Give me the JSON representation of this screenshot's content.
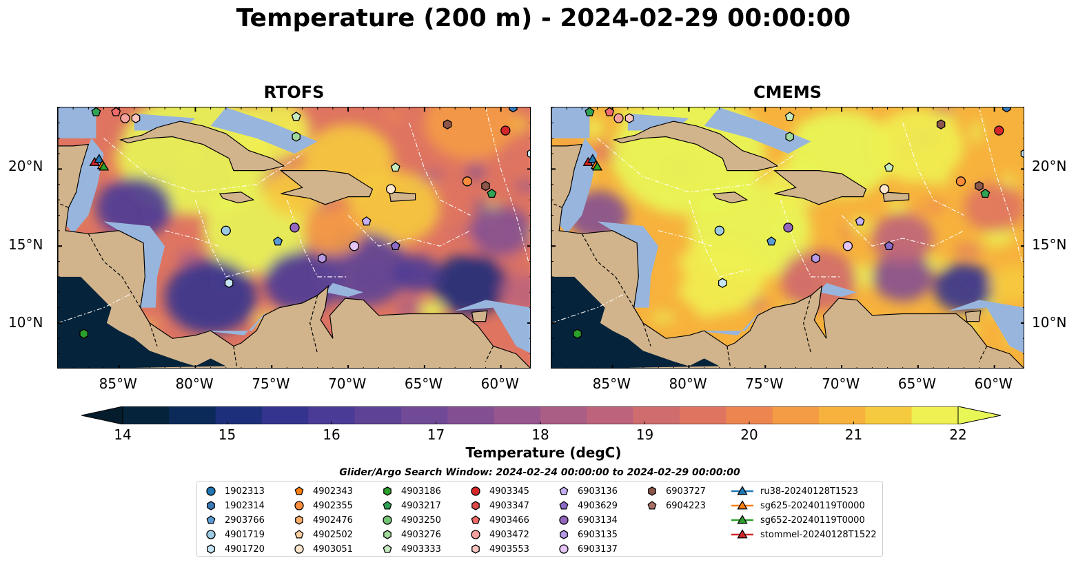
{
  "title": "Temperature (200 m) - 2024-02-29 00:00:00",
  "panels": [
    {
      "title": "RTOFS",
      "scheme": "rtofs"
    },
    {
      "title": "CMEMS",
      "scheme": "cmems"
    }
  ],
  "lon_ticks": [
    "85°W",
    "80°W",
    "75°W",
    "70°W",
    "65°W",
    "60°W"
  ],
  "lat_ticks": [
    "20°N",
    "15°N",
    "10°N"
  ],
  "map_extent": {
    "lon": [
      -89,
      -58
    ],
    "lat": [
      7,
      24
    ]
  },
  "colorbar": {
    "label": "Temperature (degC)",
    "min": 14,
    "max": 22,
    "step": 0.5,
    "ticks": [
      "14",
      "15",
      "16",
      "17",
      "18",
      "19",
      "20",
      "21",
      "22"
    ],
    "colors": [
      "#05233a",
      "#0b2a59",
      "#1d2f7a",
      "#34348f",
      "#4a3b96",
      "#5d4296",
      "#704a96",
      "#834f92",
      "#97568e",
      "#aa5d85",
      "#bd647c",
      "#cf6c6d",
      "#df7561",
      "#ed8551",
      "#f49b45",
      "#f7b23d",
      "#f6ca3f",
      "#eff052"
    ],
    "under_color": "#041c2c",
    "over_color": "#e8f756"
  },
  "colors": {
    "land": "#d2b48c",
    "shelf": "#98b5dd",
    "deep_cold": "#05233a"
  },
  "search_window": "Glider/Argo Search Window: 2024-02-24 00:00:00 to 2024-02-29 00:00:00",
  "legend": [
    {
      "label": "1902313",
      "marker": "circle",
      "color": "#1f77b4"
    },
    {
      "label": "1902314",
      "marker": "hexagon",
      "color": "#3a7ab8"
    },
    {
      "label": "2903766",
      "marker": "pentagon",
      "color": "#5a9bd4"
    },
    {
      "label": "4901719",
      "marker": "circle",
      "color": "#9ecae1"
    },
    {
      "label": "4901720",
      "marker": "hexagon",
      "color": "#c6e6f5"
    },
    {
      "label": "4902343",
      "marker": "pentagon",
      "color": "#ff7f0e"
    },
    {
      "label": "4902355",
      "marker": "circle",
      "color": "#fd8d3c"
    },
    {
      "label": "4902476",
      "marker": "hexagon",
      "color": "#fdae6b"
    },
    {
      "label": "4902502",
      "marker": "pentagon",
      "color": "#fdd0a2"
    },
    {
      "label": "4903051",
      "marker": "circle",
      "color": "#fee6ce"
    },
    {
      "label": "4903186",
      "marker": "hexagon",
      "color": "#2ca02c"
    },
    {
      "label": "4903217",
      "marker": "pentagon",
      "color": "#31a354"
    },
    {
      "label": "4903250",
      "marker": "circle",
      "color": "#74c476"
    },
    {
      "label": "4903276",
      "marker": "hexagon",
      "color": "#a1d99b"
    },
    {
      "label": "4903333",
      "marker": "pentagon",
      "color": "#c7e9c0"
    },
    {
      "label": "4903345",
      "marker": "circle",
      "color": "#d62728"
    },
    {
      "label": "4903347",
      "marker": "hexagon",
      "color": "#de4a4a"
    },
    {
      "label": "4903466",
      "marker": "pentagon",
      "color": "#f06a6a"
    },
    {
      "label": "4903472",
      "marker": "circle",
      "color": "#f4a09c"
    },
    {
      "label": "4903553",
      "marker": "hexagon",
      "color": "#fcc5c0"
    },
    {
      "label": "6903136",
      "marker": "pentagon",
      "color": "#c5b0f5"
    },
    {
      "label": "4903629",
      "marker": "pentagon",
      "color": "#8c6bc8"
    },
    {
      "label": "6903134",
      "marker": "circle",
      "color": "#9467bd"
    },
    {
      "label": "6903135",
      "marker": "hexagon",
      "color": "#b79be6"
    },
    {
      "label": "6903137",
      "marker": "circle",
      "color": "#e6c6f7"
    },
    {
      "label": "6903727",
      "marker": "hexagon",
      "color": "#8c564b"
    },
    {
      "label": "6904223",
      "marker": "pentagon",
      "color": "#a87064"
    },
    {
      "label": "ru38-20240128T1523",
      "marker": "triangle",
      "color": "#1f77b4"
    },
    {
      "label": "sg625-20240119T0000",
      "marker": "triangle",
      "color": "#ff7f0e"
    },
    {
      "label": "sg652-20240119T0000",
      "marker": "triangle",
      "color": "#2ca02c"
    },
    {
      "label": "stommel-20240128T1522",
      "marker": "triangle",
      "color": "#d62728"
    }
  ],
  "argo_positions": [
    {
      "id": "1902314",
      "lon": -59.2,
      "lat": 24.0
    },
    {
      "id": "4901720",
      "lon": -58.0,
      "lat": 21.0
    },
    {
      "id": "4903345",
      "lon": -59.7,
      "lat": 22.5
    },
    {
      "id": "6903727",
      "lon": -63.5,
      "lat": 22.9
    },
    {
      "id": "4903217",
      "lon": -86.5,
      "lat": 23.7
    },
    {
      "id": "4903466",
      "lon": -85.2,
      "lat": 23.7
    },
    {
      "id": "4903472",
      "lon": -84.6,
      "lat": 23.3
    },
    {
      "id": "4903553",
      "lon": -83.9,
      "lat": 23.3
    },
    {
      "id": "4903333",
      "lon": -73.4,
      "lat": 23.4
    },
    {
      "id": "4903276",
      "lon": -73.4,
      "lat": 22.1
    },
    {
      "id": "4903333",
      "lon": -66.9,
      "lat": 20.1
    },
    {
      "id": "4903051",
      "lon": -67.2,
      "lat": 18.7
    },
    {
      "id": "4902355",
      "lon": -62.2,
      "lat": 19.2
    },
    {
      "id": "6903727",
      "lon": -61.0,
      "lat": 18.9
    },
    {
      "id": "4903217",
      "lon": -60.6,
      "lat": 18.4
    },
    {
      "id": "4901719",
      "lon": -78.0,
      "lat": 16.0
    },
    {
      "id": "2903766",
      "lon": -74.6,
      "lat": 15.3
    },
    {
      "id": "6903134",
      "lon": -73.5,
      "lat": 16.2
    },
    {
      "id": "6903136",
      "lon": -68.8,
      "lat": 16.6
    },
    {
      "id": "4903629",
      "lon": -66.9,
      "lat": 15.0
    },
    {
      "id": "6903137",
      "lon": -69.6,
      "lat": 15.0
    },
    {
      "id": "6903135",
      "lon": -71.7,
      "lat": 14.2
    },
    {
      "id": "4901720",
      "lon": -77.8,
      "lat": 12.6
    },
    {
      "id": "4903186",
      "lon": -87.3,
      "lat": 9.3
    }
  ],
  "glider_positions": [
    {
      "id": "stommel-20240128T1522",
      "lon": -86.6,
      "lat": 20.4
    },
    {
      "id": "ru38-20240128T1523",
      "lon": -86.3,
      "lat": 20.6
    },
    {
      "id": "sg625-20240119T0000",
      "lon": -86.1,
      "lat": 20.2
    },
    {
      "id": "sg652-20240119T0000",
      "lon": -86.0,
      "lat": 20.1
    }
  ]
}
